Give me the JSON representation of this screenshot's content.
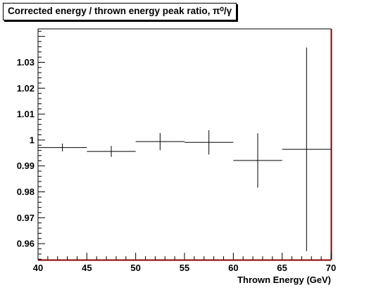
{
  "chart_data": {
    "type": "scatter",
    "title": "Corrected energy / thrown energy peak ratio, π⁰/γ",
    "xlabel": "Thrown Energy (GeV)",
    "ylabel": "",
    "xlim": [
      40,
      70
    ],
    "ylim": [
      0.9538,
      1.0429
    ],
    "x_ticks": [
      "40",
      "45",
      "50",
      "55",
      "60",
      "65",
      "70"
    ],
    "y_ticks": [
      "0.96",
      "0.97",
      "0.98",
      "0.99",
      "1",
      "1.01",
      "1.02",
      "1.03"
    ],
    "grid": false,
    "points": [
      {
        "x_low": 40,
        "x_high": 45,
        "y": 0.9971,
        "y_err": 0.0015
      },
      {
        "x_low": 45,
        "x_high": 50,
        "y": 0.9956,
        "y_err": 0.0021
      },
      {
        "x_low": 50,
        "x_high": 55,
        "y": 0.9994,
        "y_err": 0.0033
      },
      {
        "x_low": 55,
        "x_high": 60,
        "y": 0.9991,
        "y_err": 0.0047
      },
      {
        "x_low": 60,
        "x_high": 65,
        "y": 0.9921,
        "y_err": 0.0105
      },
      {
        "x_low": 65,
        "x_high": 70,
        "y": 0.9964,
        "y_err": 0.0393
      }
    ],
    "colors": {
      "markers": "#000000",
      "frame_right": "#8b0000",
      "frame_bottom": "#8b0000"
    }
  }
}
